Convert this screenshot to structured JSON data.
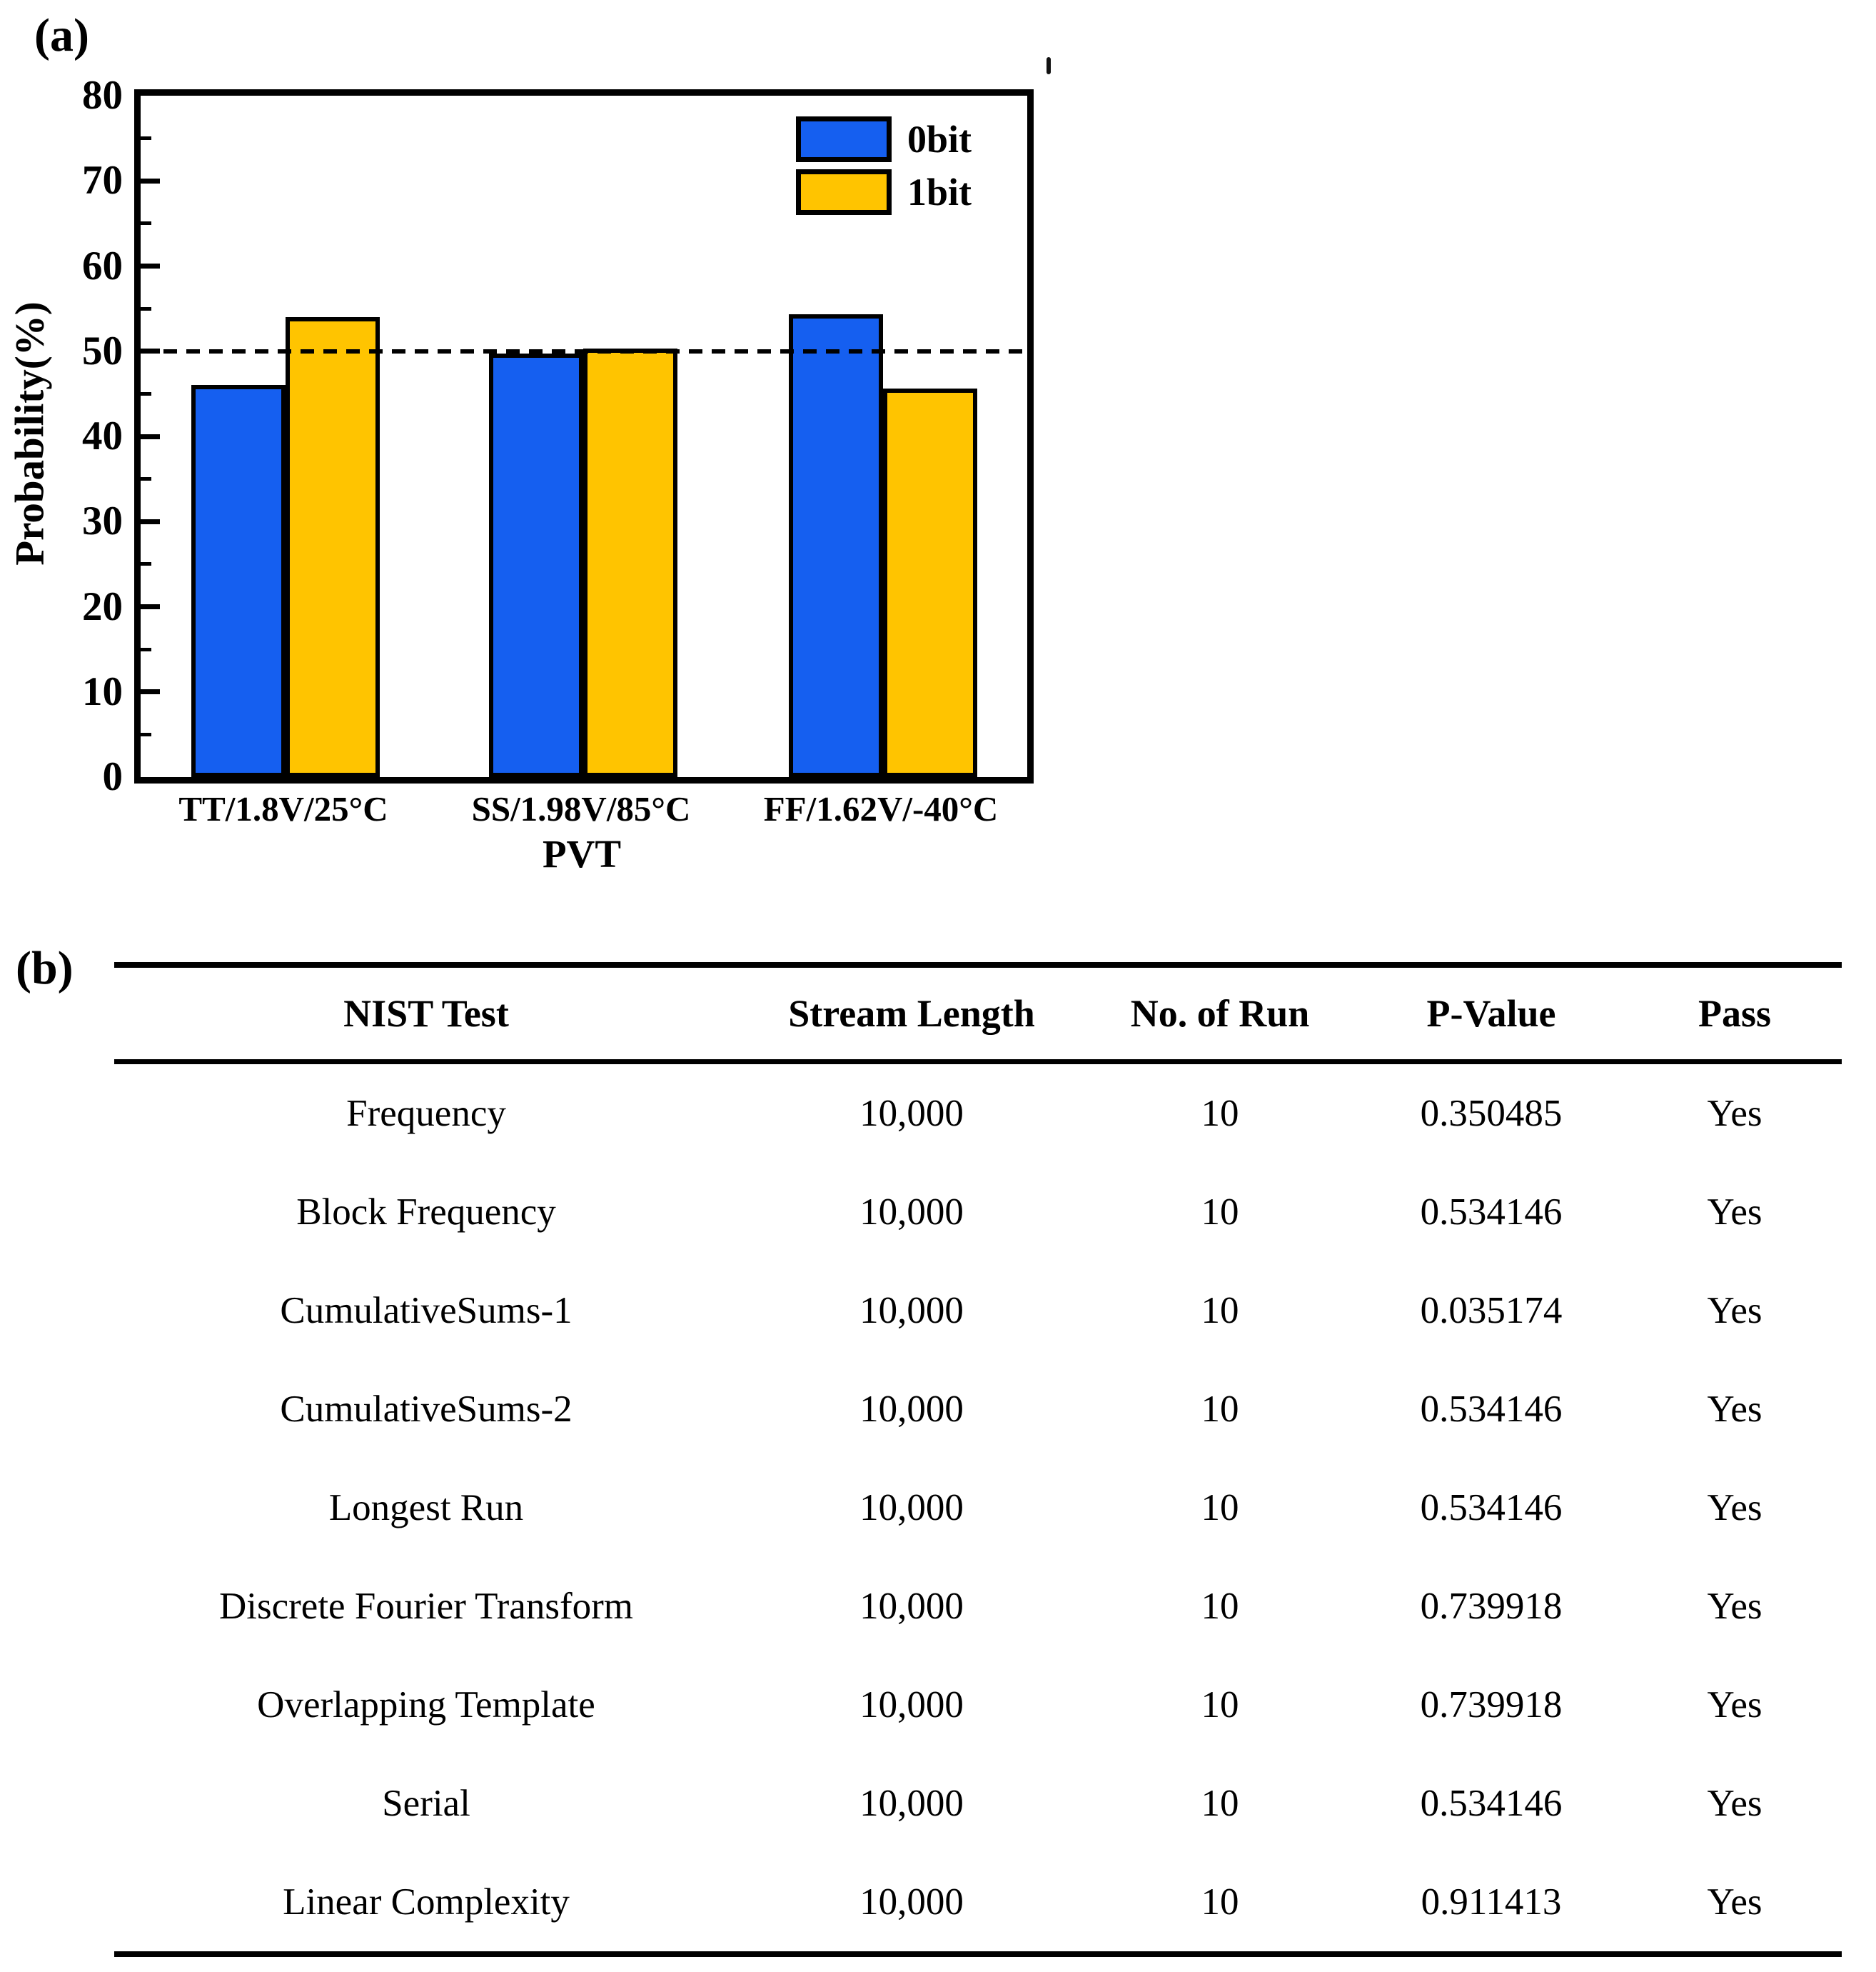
{
  "panel_a": {
    "label": "(a)"
  },
  "chart_data": {
    "type": "bar",
    "categories": [
      "TT/1.8V/25°C",
      "SS/1.98V/85°C",
      "FF/1.62V/-40°C"
    ],
    "series": [
      {
        "name": "0bit",
        "color": "#155FF0",
        "values": [
          46.0,
          49.7,
          54.3
        ]
      },
      {
        "name": "1bit",
        "color": "#FFC400",
        "values": [
          54.0,
          50.3,
          45.6
        ]
      }
    ],
    "title": "",
    "xlabel": "PVT",
    "ylabel": "Probability(%)",
    "ylim": [
      0,
      80
    ],
    "yticks": [
      0,
      10,
      20,
      30,
      40,
      50,
      60,
      70,
      80
    ],
    "minor_tick_step": 5,
    "reference_line_y": 50,
    "reference_line_style": "dashed",
    "grid": false,
    "legend_position": "inside-top-right",
    "bar_outline_color": "#000000"
  },
  "panel_b": {
    "label": "(b)",
    "table": {
      "headers": [
        "NIST Test",
        "Stream Length",
        "No. of Run",
        "P-Value",
        "Pass"
      ],
      "rows": [
        [
          "Frequency",
          "10,000",
          "10",
          "0.350485",
          "Yes"
        ],
        [
          "Block Frequency",
          "10,000",
          "10",
          "0.534146",
          "Yes"
        ],
        [
          "CumulativeSums-1",
          "10,000",
          "10",
          "0.035174",
          "Yes"
        ],
        [
          "CumulativeSums-2",
          "10,000",
          "10",
          "0.534146",
          "Yes"
        ],
        [
          "Longest Run",
          "10,000",
          "10",
          "0.534146",
          "Yes"
        ],
        [
          "Discrete Fourier Transform",
          "10,000",
          "10",
          "0.739918",
          "Yes"
        ],
        [
          "Overlapping Template",
          "10,000",
          "10",
          "0.739918",
          "Yes"
        ],
        [
          "Serial",
          "10,000",
          "10",
          "0.534146",
          "Yes"
        ],
        [
          "Linear Complexity",
          "10,000",
          "10",
          "0.911413",
          "Yes"
        ]
      ]
    }
  }
}
